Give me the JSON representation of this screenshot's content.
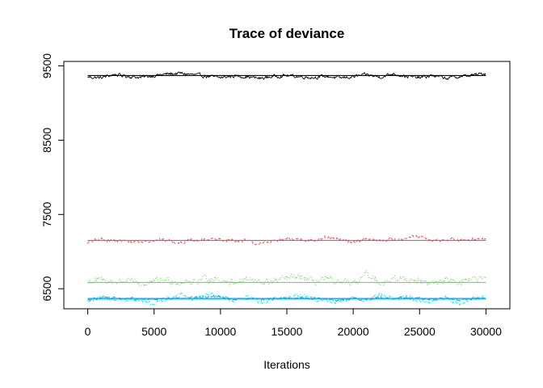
{
  "chart_data": {
    "type": "line",
    "title": "Trace of deviance",
    "xlabel": "Iterations",
    "ylabel": "",
    "xlim": [
      -1800,
      31800
    ],
    "ylim": [
      6230,
      9560
    ],
    "xticks": [
      0,
      5000,
      10000,
      15000,
      20000,
      25000,
      30000
    ],
    "xtick_labels": [
      "0",
      "5000",
      "10000",
      "15000",
      "20000",
      "25000",
      "30000"
    ],
    "yticks": [
      6500,
      7500,
      8500,
      9500
    ],
    "ytick_labels": [
      "6500",
      "7500",
      "8500",
      "9500"
    ],
    "grid": false,
    "series": [
      {
        "color": "#000000",
        "line_style": "solid",
        "x": [
          0,
          1000,
          2000,
          3000,
          4000,
          5000,
          6000,
          7000,
          8000,
          9000,
          10000,
          11000,
          12000,
          13000,
          14000,
          15000,
          16000,
          17000,
          18000,
          19000,
          20000,
          21000,
          22000,
          23000,
          24000,
          25000,
          26000,
          27000,
          28000,
          29000,
          30000
        ],
        "values": [
          9350,
          9340,
          9385,
          9360,
          9345,
          9370,
          9390,
          9400,
          9380,
          9360,
          9340,
          9365,
          9355,
          9330,
          9360,
          9370,
          9355,
          9345,
          9360,
          9335,
          9355,
          9380,
          9350,
          9395,
          9360,
          9340,
          9370,
          9335,
          9355,
          9375,
          9400
        ],
        "mean": 9370
      },
      {
        "color": "#DF536B",
        "line_style": "dashed",
        "x": [
          0,
          1000,
          2000,
          3000,
          4000,
          5000,
          6000,
          7000,
          8000,
          9000,
          10000,
          11000,
          12000,
          13000,
          14000,
          15000,
          16000,
          17000,
          18000,
          19000,
          20000,
          21000,
          22000,
          23000,
          24000,
          25000,
          26000,
          27000,
          28000,
          29000,
          30000
        ],
        "values": [
          7120,
          7170,
          7150,
          7140,
          7130,
          7160,
          7150,
          7130,
          7140,
          7170,
          7160,
          7150,
          7140,
          7100,
          7150,
          7160,
          7170,
          7150,
          7180,
          7160,
          7130,
          7170,
          7150,
          7160,
          7190,
          7200,
          7140,
          7160,
          7150,
          7170,
          7160
        ],
        "mean": 7150
      },
      {
        "color": "#61D04F",
        "line_style": "dotted",
        "x": [
          0,
          1000,
          2000,
          3000,
          4000,
          5000,
          6000,
          7000,
          8000,
          9000,
          10000,
          11000,
          12000,
          13000,
          14000,
          15000,
          16000,
          17000,
          18000,
          19000,
          20000,
          21000,
          22000,
          23000,
          24000,
          25000,
          26000,
          27000,
          28000,
          29000,
          30000
        ],
        "values": [
          6580,
          6620,
          6590,
          6610,
          6560,
          6590,
          6620,
          6580,
          6600,
          6640,
          6620,
          6590,
          6630,
          6580,
          6600,
          6640,
          6660,
          6600,
          6620,
          6580,
          6560,
          6700,
          6590,
          6620,
          6640,
          6600,
          6570,
          6620,
          6600,
          6640,
          6610
        ],
        "mean": 6585
      },
      {
        "color": "#28E2E5",
        "line_style": "dotdash",
        "x": [
          0,
          1000,
          2000,
          3000,
          4000,
          5000,
          6000,
          7000,
          8000,
          9000,
          10000,
          11000,
          12000,
          13000,
          14000,
          15000,
          16000,
          17000,
          18000,
          19000,
          20000,
          21000,
          22000,
          23000,
          24000,
          25000,
          26000,
          27000,
          28000,
          29000,
          30000
        ],
        "values": [
          6320,
          6380,
          6360,
          6330,
          6340,
          6300,
          6370,
          6410,
          6360,
          6420,
          6400,
          6330,
          6380,
          6320,
          6370,
          6380,
          6410,
          6360,
          6340,
          6310,
          6380,
          6330,
          6420,
          6360,
          6400,
          6340,
          6320,
          6380,
          6300,
          6360,
          6390
        ],
        "mean": 6360
      },
      {
        "color": "#2297E6",
        "line_style": "longdash",
        "x": [
          0,
          1000,
          2000,
          3000,
          4000,
          5000,
          6000,
          7000,
          8000,
          9000,
          10000,
          11000,
          12000,
          13000,
          14000,
          15000,
          16000,
          17000,
          18000,
          19000,
          20000,
          21000,
          22000,
          23000,
          24000,
          25000,
          26000,
          27000,
          28000,
          29000,
          30000
        ],
        "values": [
          6350,
          6380,
          6370,
          6360,
          6365,
          6355,
          6360,
          6375,
          6380,
          6390,
          6385,
          6360,
          6370,
          6355,
          6365,
          6375,
          6380,
          6370,
          6360,
          6345,
          6370,
          6355,
          6385,
          6370,
          6380,
          6360,
          6350,
          6370,
          6345,
          6365,
          6375
        ],
        "mean": 6370
      }
    ]
  }
}
